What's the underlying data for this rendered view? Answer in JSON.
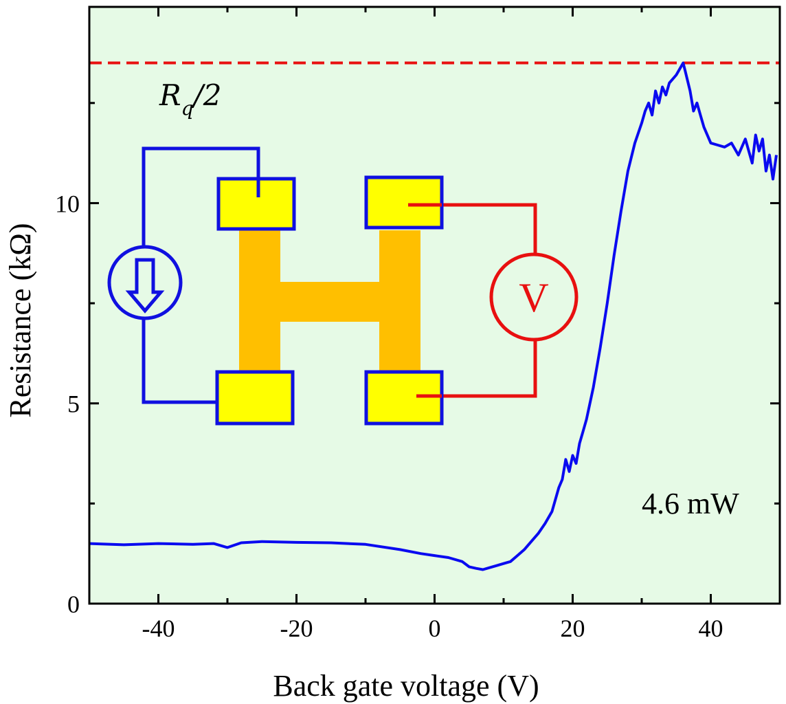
{
  "chart_data": {
    "type": "line",
    "xlabel": "Back gate voltage (V)",
    "ylabel": "Resistance (kΩ)",
    "xlim": [
      -50,
      50
    ],
    "ylim": [
      0,
      14.9
    ],
    "xticks": [
      -40,
      -20,
      0,
      20,
      40
    ],
    "xtick_labels": [
      "-40",
      "-20",
      "0",
      "20",
      "40"
    ],
    "yticks": [
      0,
      5,
      10
    ],
    "ytick_labels": [
      "0",
      "5",
      "10"
    ],
    "grid": false,
    "background": "#e6fae6",
    "series": [
      {
        "color": "#0a0af0",
        "x": [
          -50,
          -45,
          -40,
          -35,
          -32,
          -30,
          -28,
          -25,
          -20,
          -15,
          -10,
          -5,
          -2,
          0,
          2,
          4,
          5,
          6,
          7,
          8,
          9,
          10,
          11,
          12,
          13,
          14,
          15,
          16,
          17,
          18,
          18.5,
          19,
          19.5,
          20,
          20.5,
          21,
          21.5,
          22,
          23,
          24,
          25,
          26,
          27,
          28,
          29,
          30,
          30.5,
          31,
          31.5,
          32,
          32.5,
          33,
          33.5,
          34,
          35,
          36,
          36.3,
          37,
          37.5,
          38,
          38.5,
          39,
          40,
          41,
          42,
          43,
          44,
          45,
          45.5,
          46,
          46.5,
          47,
          47.5,
          48,
          48.5,
          49,
          49.5
        ],
        "y": [
          1.5,
          1.47,
          1.5,
          1.48,
          1.5,
          1.4,
          1.52,
          1.55,
          1.53,
          1.52,
          1.48,
          1.35,
          1.25,
          1.2,
          1.15,
          1.05,
          0.92,
          0.88,
          0.85,
          0.9,
          0.95,
          1.0,
          1.05,
          1.2,
          1.35,
          1.55,
          1.75,
          2.0,
          2.3,
          2.9,
          3.1,
          3.6,
          3.3,
          3.7,
          3.5,
          4.0,
          4.3,
          4.6,
          5.4,
          6.4,
          7.5,
          8.7,
          9.8,
          10.8,
          11.5,
          12.0,
          12.3,
          12.5,
          12.2,
          12.8,
          12.5,
          12.9,
          12.7,
          13.0,
          13.2,
          13.5,
          13.3,
          12.8,
          12.3,
          12.5,
          12.2,
          11.9,
          11.5,
          11.45,
          11.4,
          11.5,
          11.2,
          11.6,
          11.3,
          11.0,
          11.7,
          11.3,
          11.6,
          10.8,
          11.2,
          10.6,
          11.2
        ]
      }
    ],
    "reference_line": {
      "y": 13.5,
      "color": "#e81010",
      "style": "dashed",
      "label": "R",
      "label_subscript": "q",
      "label_suffix": "/2"
    },
    "annotations": [
      {
        "text": "4.6 mW",
        "x": 30,
        "y": 2.25
      }
    ],
    "inset": {
      "description_hidden": true,
      "voltmeter_label": "V",
      "pad_color": "#ffff00",
      "pad_border": "#1010e0",
      "channel_color": "#ffbf00",
      "current_color": "#1010e0",
      "voltage_color": "#e81010"
    }
  }
}
